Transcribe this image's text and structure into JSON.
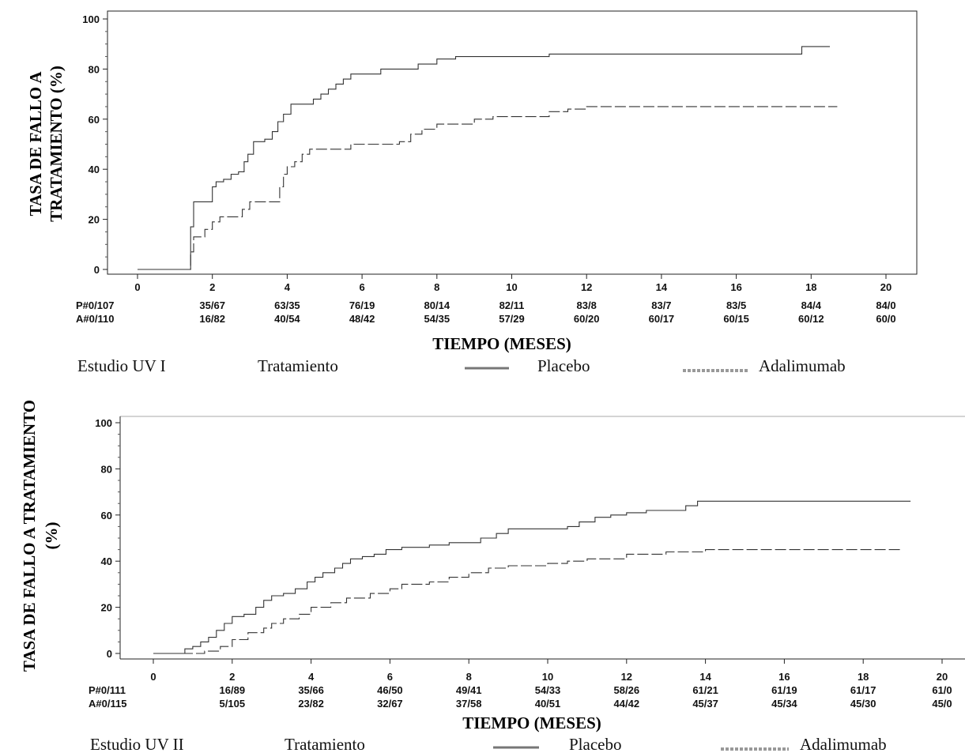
{
  "chart_data": [
    {
      "type": "line",
      "study_label": "Estudio UV I",
      "legend_title": "Tratamiento",
      "xlabel": "TIEMPO (MESES)",
      "ylabel_lines": [
        "TASA DE FALLO A",
        "TRATAMIENTO (%)"
      ],
      "xlim": [
        0,
        20
      ],
      "ylim": [
        0,
        100
      ],
      "xticks": [
        0,
        2,
        4,
        6,
        8,
        10,
        12,
        14,
        16,
        18,
        20
      ],
      "yticks": [
        0,
        20,
        40,
        60,
        80,
        100
      ],
      "series": [
        {
          "name": "Placebo",
          "style": "solid",
          "points": [
            [
              0,
              0
            ],
            [
              1.4,
              0
            ],
            [
              1.42,
              17
            ],
            [
              1.5,
              27
            ],
            [
              1.9,
              27
            ],
            [
              2.0,
              33
            ],
            [
              2.1,
              35
            ],
            [
              2.3,
              36
            ],
            [
              2.5,
              38
            ],
            [
              2.7,
              39
            ],
            [
              2.85,
              43
            ],
            [
              2.95,
              46
            ],
            [
              3.1,
              51
            ],
            [
              3.4,
              52
            ],
            [
              3.6,
              55
            ],
            [
              3.75,
              59
            ],
            [
              3.9,
              62
            ],
            [
              4.1,
              66
            ],
            [
              4.5,
              66
            ],
            [
              4.7,
              68
            ],
            [
              4.9,
              70
            ],
            [
              5.1,
              72
            ],
            [
              5.3,
              74
            ],
            [
              5.5,
              76
            ],
            [
              5.7,
              78
            ],
            [
              6.0,
              78
            ],
            [
              6.5,
              80
            ],
            [
              7.0,
              80
            ],
            [
              7.5,
              82
            ],
            [
              8.0,
              84
            ],
            [
              8.5,
              85
            ],
            [
              10.9,
              85
            ],
            [
              11.0,
              86
            ],
            [
              17.7,
              86
            ],
            [
              17.75,
              89
            ],
            [
              18.5,
              89
            ]
          ]
        },
        {
          "name": "Adalimumab",
          "style": "dashed",
          "points": [
            [
              0,
              0
            ],
            [
              1.4,
              0
            ],
            [
              1.42,
              7
            ],
            [
              1.5,
              13
            ],
            [
              1.8,
              16
            ],
            [
              2.0,
              19
            ],
            [
              2.2,
              21
            ],
            [
              2.5,
              21
            ],
            [
              2.8,
              24
            ],
            [
              3.0,
              27
            ],
            [
              3.7,
              27
            ],
            [
              3.8,
              33
            ],
            [
              3.9,
              38
            ],
            [
              4.0,
              41
            ],
            [
              4.2,
              43
            ],
            [
              4.4,
              46
            ],
            [
              4.6,
              48
            ],
            [
              5.5,
              48
            ],
            [
              5.7,
              50
            ],
            [
              6.5,
              50
            ],
            [
              7.0,
              51
            ],
            [
              7.3,
              54
            ],
            [
              7.6,
              56
            ],
            [
              8.0,
              58
            ],
            [
              8.5,
              58
            ],
            [
              9.0,
              60
            ],
            [
              9.5,
              61
            ],
            [
              11.0,
              63
            ],
            [
              11.5,
              64
            ],
            [
              12.0,
              65
            ],
            [
              18.7,
              65
            ]
          ]
        }
      ],
      "risk_table": {
        "P_label": "P#0/107",
        "A_label": "A#0/110",
        "P": [
          "35/67",
          "63/35",
          "76/19",
          "80/14",
          "82/11",
          "83/8",
          "83/7",
          "83/5",
          "84/4",
          "84/0"
        ],
        "A": [
          "16/82",
          "40/54",
          "48/42",
          "54/35",
          "57/29",
          "60/20",
          "60/17",
          "60/15",
          "60/12",
          "60/0"
        ]
      }
    },
    {
      "type": "line",
      "study_label": "Estudio UV II",
      "legend_title": "Tratamiento",
      "xlabel": "TIEMPO (MESES)",
      "ylabel_lines": [
        "TASA DE FALLO A TRATAMIENTO",
        "(%)"
      ],
      "xlim": [
        0,
        20
      ],
      "ylim": [
        0,
        100
      ],
      "xticks": [
        0,
        2,
        4,
        6,
        8,
        10,
        12,
        14,
        16,
        18,
        20
      ],
      "yticks": [
        0,
        20,
        40,
        60,
        80,
        100
      ],
      "series": [
        {
          "name": "Placebo",
          "style": "solid",
          "points": [
            [
              0,
              0
            ],
            [
              0.7,
              0
            ],
            [
              0.8,
              2
            ],
            [
              1.0,
              3
            ],
            [
              1.2,
              5
            ],
            [
              1.4,
              7
            ],
            [
              1.6,
              10
            ],
            [
              1.8,
              13
            ],
            [
              2.0,
              16
            ],
            [
              2.3,
              17
            ],
            [
              2.6,
              20
            ],
            [
              2.8,
              23
            ],
            [
              3.0,
              25
            ],
            [
              3.3,
              26
            ],
            [
              3.6,
              28
            ],
            [
              3.9,
              31
            ],
            [
              4.1,
              33
            ],
            [
              4.3,
              35
            ],
            [
              4.6,
              37
            ],
            [
              4.8,
              39
            ],
            [
              5.0,
              41
            ],
            [
              5.3,
              42
            ],
            [
              5.6,
              43
            ],
            [
              5.9,
              45
            ],
            [
              6.3,
              46
            ],
            [
              7.0,
              47
            ],
            [
              7.5,
              48
            ],
            [
              8.0,
              48
            ],
            [
              8.3,
              50
            ],
            [
              8.7,
              52
            ],
            [
              9.0,
              54
            ],
            [
              10.5,
              55
            ],
            [
              10.8,
              57
            ],
            [
              11.2,
              59
            ],
            [
              11.6,
              60
            ],
            [
              12.0,
              61
            ],
            [
              12.5,
              62
            ],
            [
              13.5,
              64
            ],
            [
              13.8,
              66
            ],
            [
              19.2,
              66
            ]
          ]
        },
        {
          "name": "Adalimumab",
          "style": "dashed",
          "points": [
            [
              0,
              0
            ],
            [
              1.0,
              0
            ],
            [
              1.3,
              1
            ],
            [
              1.7,
              3
            ],
            [
              2.0,
              6
            ],
            [
              2.4,
              9
            ],
            [
              2.8,
              11
            ],
            [
              3.0,
              13
            ],
            [
              3.3,
              15
            ],
            [
              3.7,
              17
            ],
            [
              4.0,
              20
            ],
            [
              4.5,
              22
            ],
            [
              4.9,
              24
            ],
            [
              5.5,
              26
            ],
            [
              6.0,
              28
            ],
            [
              6.3,
              30
            ],
            [
              7.0,
              31
            ],
            [
              7.5,
              33
            ],
            [
              8.0,
              35
            ],
            [
              8.5,
              37
            ],
            [
              9.0,
              38
            ],
            [
              10.0,
              39
            ],
            [
              10.5,
              40
            ],
            [
              11.0,
              41
            ],
            [
              12.0,
              43
            ],
            [
              13.0,
              44
            ],
            [
              14.0,
              45
            ],
            [
              19.0,
              45
            ]
          ]
        }
      ],
      "risk_table": {
        "P_label": "P#0/111",
        "A_label": "A#0/115",
        "P": [
          "16/89",
          "35/66",
          "46/50",
          "49/41",
          "54/33",
          "58/26",
          "61/21",
          "61/19",
          "61/17",
          "61/0"
        ],
        "A": [
          "5/105",
          "23/82",
          "32/67",
          "37/58",
          "40/51",
          "44/42",
          "45/37",
          "45/34",
          "45/30",
          "45/0"
        ]
      }
    }
  ]
}
